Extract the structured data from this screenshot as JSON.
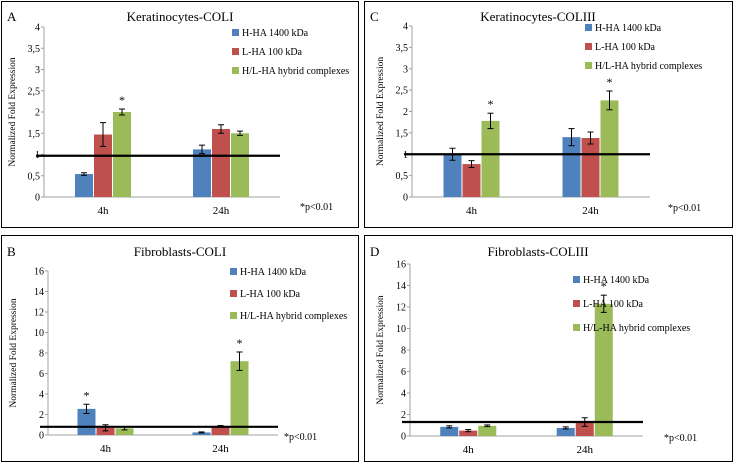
{
  "colors": {
    "series": [
      "#4F81BD",
      "#C0504D",
      "#9BBB59"
    ],
    "error_bar": "#000000",
    "baseline": "#000000",
    "axis": "#a0a0a0"
  },
  "legend_labels": [
    "H-HA 1400 kDa",
    "L-HA 100 kDa",
    "H/L-HA hybrid complexes"
  ],
  "chart_data": [
    {
      "type": "bar",
      "panel_letter": "A",
      "title": "Keratinocytes-COLI",
      "ylabel": "Normalized Fold Expression",
      "xlabel": "",
      "categories": [
        "4h",
        "24h"
      ],
      "ylim": [
        0,
        4
      ],
      "yticks": [
        "0",
        "0,5",
        "1",
        "1,5",
        "2",
        "2,5",
        "3",
        "3,5",
        "4"
      ],
      "ytick_values": [
        0,
        0.5,
        1,
        1.5,
        2,
        2.5,
        3,
        3.5,
        4
      ],
      "reference_line": 0.97,
      "series": [
        {
          "name": "H-HA 1400 kDa",
          "values": [
            0.54,
            1.12
          ],
          "errors": [
            0.03,
            0.1
          ]
        },
        {
          "name": "L-HA 100 kDa",
          "values": [
            1.47,
            1.6
          ],
          "errors": [
            0.28,
            0.1
          ]
        },
        {
          "name": "H/L-HA hybrid complexes",
          "values": [
            2.0,
            1.5
          ],
          "errors": [
            0.07,
            0.05
          ]
        }
      ],
      "significance": [
        {
          "category": "4h",
          "series": 2,
          "label": "*"
        }
      ],
      "footnote": "*p<0.01",
      "legend_position": "top-right"
    },
    {
      "type": "bar",
      "panel_letter": "C",
      "title": "Keratinocytes-COLIII",
      "ylabel": "Normalized Fold Expression",
      "xlabel": "",
      "categories": [
        "4h",
        "24h"
      ],
      "ylim": [
        0,
        4
      ],
      "yticks": [
        "0",
        "0,5",
        "1",
        "1,5",
        "2",
        "2,5",
        "3",
        "3,5",
        "4"
      ],
      "ytick_values": [
        0,
        0.5,
        1,
        1.5,
        2,
        2.5,
        3,
        3.5,
        4
      ],
      "reference_line": 1.0,
      "series": [
        {
          "name": "H-HA 1400 kDa",
          "values": [
            1.0,
            1.4
          ],
          "errors": [
            0.14,
            0.2
          ]
        },
        {
          "name": "L-HA 100 kDa",
          "values": [
            0.77,
            1.38
          ],
          "errors": [
            0.08,
            0.14
          ]
        },
        {
          "name": "H/L-HA hybrid complexes",
          "values": [
            1.78,
            2.26
          ],
          "errors": [
            0.18,
            0.22
          ]
        }
      ],
      "significance": [
        {
          "category": "4h",
          "series": 2,
          "label": "*"
        },
        {
          "category": "24h",
          "series": 2,
          "label": "*"
        }
      ],
      "footnote": "*p<0.01",
      "legend_position": "top-right"
    },
    {
      "type": "bar",
      "panel_letter": "B",
      "title": "Fibroblasts-COLI",
      "ylabel": "Normalized Fold Expression",
      "xlabel": "",
      "categories": [
        "4h",
        "24h"
      ],
      "ylim": [
        0,
        16
      ],
      "yticks": [
        "0",
        "2",
        "4",
        "6",
        "8",
        "10",
        "12",
        "14",
        "16"
      ],
      "ytick_values": [
        0,
        2,
        4,
        6,
        8,
        10,
        12,
        14,
        16
      ],
      "reference_line": 0.8,
      "series": [
        {
          "name": "H-HA 1400 kDa",
          "values": [
            2.55,
            0.25
          ],
          "errors": [
            0.45,
            0.05
          ]
        },
        {
          "name": "L-HA 100 kDa",
          "values": [
            0.7,
            0.85
          ],
          "errors": [
            0.3,
            0.08
          ]
        },
        {
          "name": "H/L-HA hybrid complexes",
          "values": [
            0.65,
            7.2
          ],
          "errors": [
            0.15,
            0.9
          ]
        }
      ],
      "significance": [
        {
          "category": "4h",
          "series": 0,
          "label": "*"
        },
        {
          "category": "24h",
          "series": 2,
          "label": "*"
        }
      ],
      "footnote": "*p<0.01",
      "legend_position": "top-right"
    },
    {
      "type": "bar",
      "panel_letter": "D",
      "title": "Fibroblasts-COLIII",
      "ylabel": "Normalized Fold Expression",
      "xlabel": "",
      "categories": [
        "4h",
        "24h"
      ],
      "ylim": [
        0,
        16
      ],
      "yticks": [
        "0",
        "2",
        "4",
        "6",
        "8",
        "10",
        "12",
        "14",
        "16"
      ],
      "ytick_values": [
        0,
        2,
        4,
        6,
        8,
        10,
        12,
        14,
        16
      ],
      "reference_line": 1.3,
      "series": [
        {
          "name": "H-HA 1400 kDa",
          "values": [
            0.85,
            0.75
          ],
          "errors": [
            0.1,
            0.1
          ]
        },
        {
          "name": "L-HA 100 kDa",
          "values": [
            0.5,
            1.3
          ],
          "errors": [
            0.1,
            0.4
          ]
        },
        {
          "name": "H/L-HA hybrid complexes",
          "values": [
            0.95,
            12.3
          ],
          "errors": [
            0.08,
            0.8
          ]
        }
      ],
      "significance": [
        {
          "category": "24h",
          "series": 2,
          "label": "*"
        }
      ],
      "footnote": "*p<0.01",
      "legend_position": "top-right"
    }
  ]
}
